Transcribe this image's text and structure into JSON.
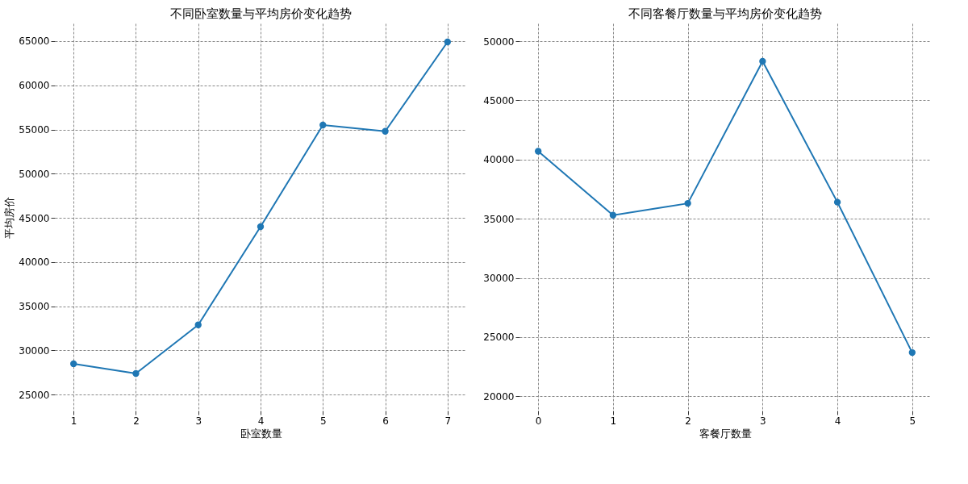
{
  "chart_data": [
    {
      "type": "line",
      "title": "不同卧室数量与平均房价变化趋势",
      "xlabel": "卧室数量",
      "ylabel": "平均房价",
      "x": [
        1,
        2,
        3,
        4,
        5,
        6,
        7
      ],
      "series": [
        {
          "color": "#1f77b4",
          "values": [
            28500,
            27400,
            32900,
            44000,
            55500,
            54800,
            64900
          ]
        }
      ],
      "xlim": [
        0.7,
        7.3
      ],
      "xticks": [
        1,
        2,
        3,
        4,
        5,
        6,
        7
      ],
      "ylim": [
        23200,
        67000
      ],
      "yticks": [
        25000,
        30000,
        35000,
        40000,
        45000,
        50000,
        55000,
        60000,
        65000
      ],
      "grid": true,
      "marker": "circle",
      "line_style": "solid",
      "legend": false
    },
    {
      "type": "line",
      "title": "不同客餐厅数量与平均房价变化趋势",
      "xlabel": "客餐厅数量",
      "x": [
        0,
        1,
        2,
        3,
        4,
        5
      ],
      "series": [
        {
          "color": "#1f77b4",
          "values": [
            40700,
            35300,
            36300,
            48300,
            36400,
            23700
          ]
        }
      ],
      "xlim": [
        -0.25,
        5.25
      ],
      "xticks": [
        0,
        1,
        2,
        3,
        4,
        5
      ],
      "ylim": [
        18800,
        51500
      ],
      "yticks": [
        20000,
        25000,
        30000,
        35000,
        40000,
        45000,
        50000
      ],
      "grid": true,
      "marker": "circle",
      "line_style": "solid",
      "legend": false
    }
  ]
}
